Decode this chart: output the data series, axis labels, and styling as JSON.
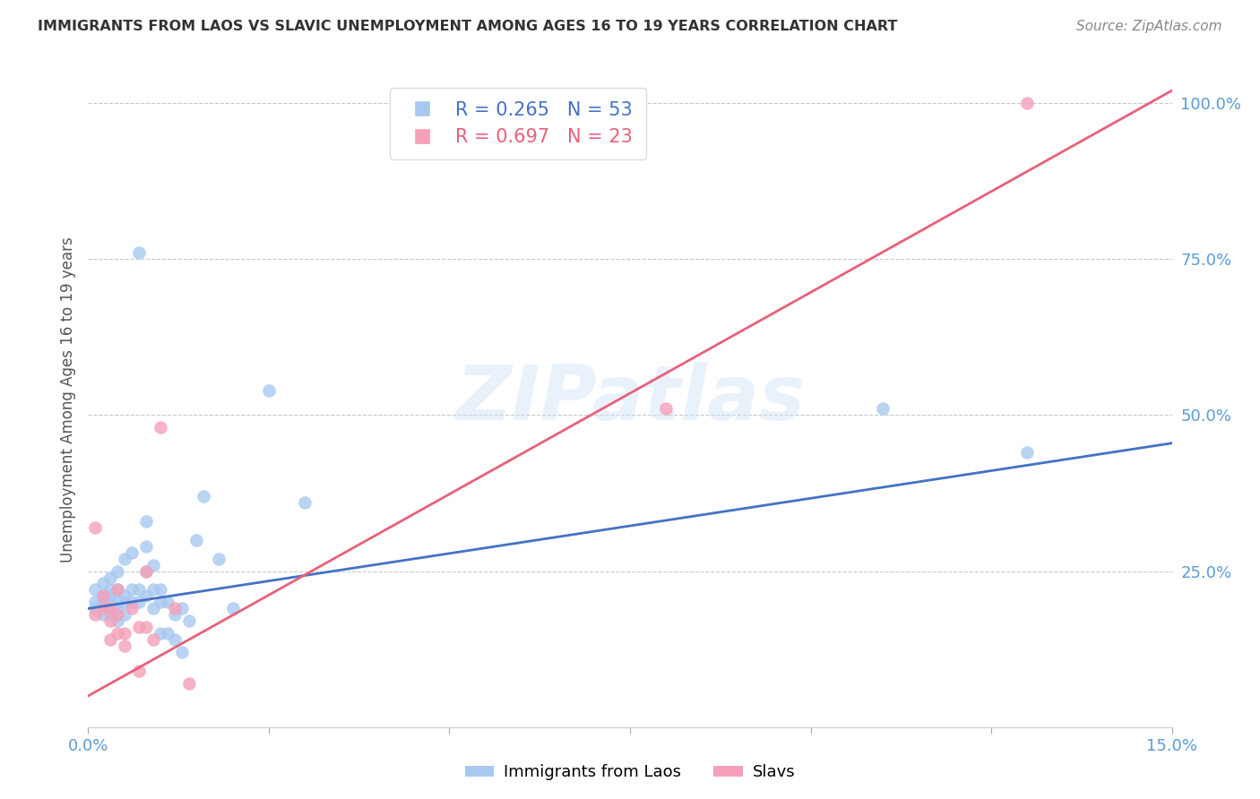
{
  "title": "IMMIGRANTS FROM LAOS VS SLAVIC UNEMPLOYMENT AMONG AGES 16 TO 19 YEARS CORRELATION CHART",
  "source": "Source: ZipAtlas.com",
  "ylabel": "Unemployment Among Ages 16 to 19 years",
  "xlim": [
    0.0,
    0.15
  ],
  "ylim": [
    0.0,
    1.05
  ],
  "blue_R": 0.265,
  "blue_N": 53,
  "pink_R": 0.697,
  "pink_N": 23,
  "blue_color": "#A8C8F0",
  "pink_color": "#F4A0B8",
  "blue_line_color": "#4472C4",
  "pink_line_color": "#E8607A",
  "title_color": "#333333",
  "axis_label_color": "#555555",
  "tick_color": "#5B9BD5",
  "grid_color": "#C8C8C8",
  "watermark": "ZIPatlas",
  "legend_label_blue": "Immigrants from Laos",
  "legend_label_pink": "Slavs",
  "blue_line_x0": 0.0,
  "blue_line_y0": 0.19,
  "blue_line_x1": 0.15,
  "blue_line_y1": 0.455,
  "pink_line_x0": 0.0,
  "pink_line_y0": 0.05,
  "pink_line_x1": 0.15,
  "pink_line_y1": 1.02,
  "blue_x": [
    0.001,
    0.001,
    0.001,
    0.002,
    0.002,
    0.002,
    0.002,
    0.003,
    0.003,
    0.003,
    0.003,
    0.003,
    0.003,
    0.004,
    0.004,
    0.004,
    0.004,
    0.004,
    0.005,
    0.005,
    0.005,
    0.005,
    0.006,
    0.006,
    0.006,
    0.007,
    0.007,
    0.007,
    0.008,
    0.008,
    0.008,
    0.008,
    0.009,
    0.009,
    0.009,
    0.01,
    0.01,
    0.01,
    0.011,
    0.011,
    0.012,
    0.012,
    0.013,
    0.013,
    0.014,
    0.015,
    0.016,
    0.018,
    0.02,
    0.025,
    0.03,
    0.11,
    0.13
  ],
  "blue_y": [
    0.2,
    0.22,
    0.19,
    0.18,
    0.2,
    0.21,
    0.23,
    0.19,
    0.2,
    0.21,
    0.22,
    0.18,
    0.24,
    0.19,
    0.2,
    0.22,
    0.25,
    0.17,
    0.18,
    0.2,
    0.21,
    0.27,
    0.2,
    0.22,
    0.28,
    0.2,
    0.22,
    0.76,
    0.21,
    0.25,
    0.29,
    0.33,
    0.19,
    0.22,
    0.26,
    0.15,
    0.2,
    0.22,
    0.15,
    0.2,
    0.14,
    0.18,
    0.12,
    0.19,
    0.17,
    0.3,
    0.37,
    0.27,
    0.19,
    0.54,
    0.36,
    0.51,
    0.44
  ],
  "pink_x": [
    0.001,
    0.001,
    0.002,
    0.002,
    0.003,
    0.003,
    0.003,
    0.004,
    0.004,
    0.004,
    0.005,
    0.005,
    0.006,
    0.007,
    0.007,
    0.008,
    0.008,
    0.009,
    0.01,
    0.012,
    0.014,
    0.08,
    0.13
  ],
  "pink_y": [
    0.18,
    0.32,
    0.19,
    0.21,
    0.19,
    0.17,
    0.14,
    0.22,
    0.18,
    0.15,
    0.15,
    0.13,
    0.19,
    0.09,
    0.16,
    0.25,
    0.16,
    0.14,
    0.48,
    0.19,
    0.07,
    0.51,
    1.0
  ]
}
